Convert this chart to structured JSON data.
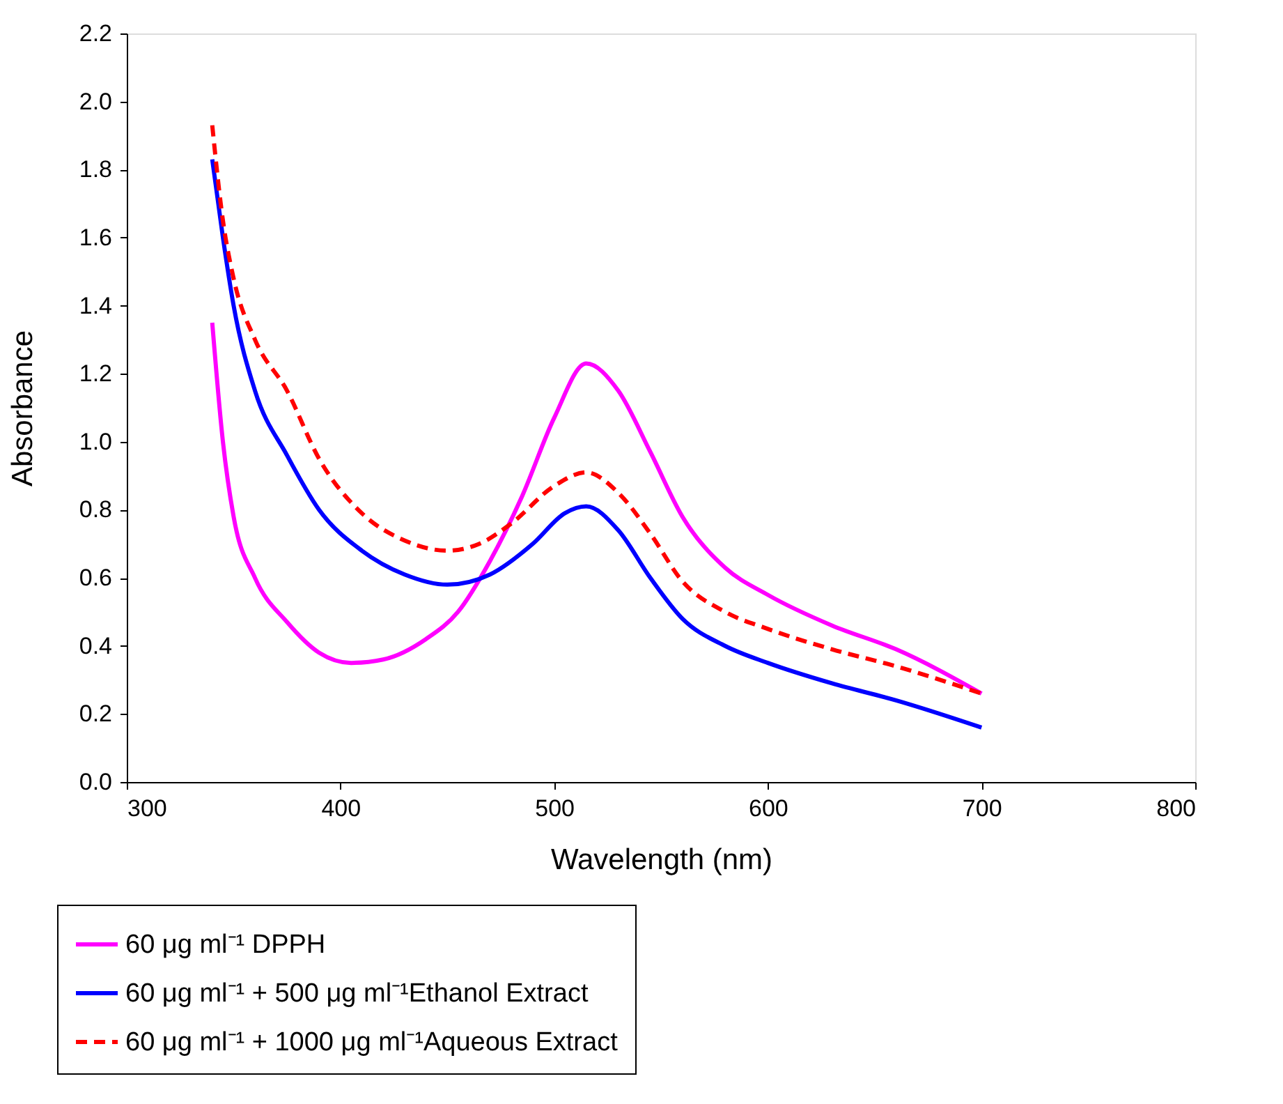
{
  "chart_data": {
    "type": "line",
    "xlabel": "Wavelength (nm)",
    "ylabel": "Absorbance",
    "xlim": [
      300,
      800
    ],
    "xticks": [
      300,
      400,
      500,
      600,
      700,
      800
    ],
    "ylim": [
      0,
      2.2
    ],
    "yticks": [
      {
        "value": 0,
        "label": "0.0"
      },
      {
        "value": 0.2,
        "label": "0.2"
      },
      {
        "value": 0.4,
        "label": "0.4"
      },
      {
        "value": 0.6,
        "label": "0.6"
      },
      {
        "value": 0.8,
        "label": "0.8"
      },
      {
        "value": 1,
        "label": "1.0"
      },
      {
        "value": 1.2,
        "label": "1.2"
      },
      {
        "value": 1.4,
        "label": "1.4"
      },
      {
        "value": 1.6,
        "label": "1.6"
      },
      {
        "value": 1.8,
        "label": "1.8"
      },
      {
        "value": 2,
        "label": "2.0"
      },
      {
        "value": 2.2,
        "label": "2.2"
      }
    ],
    "grid": false,
    "legend": "bottom left",
    "marker": "none",
    "series": [
      {
        "name": "60 μg ml⁻¹ DPPH",
        "color": "#ff00ff",
        "line_style": "solid",
        "x": [
          340,
          345,
          350,
          360,
          375,
          390,
          405,
          420,
          440,
          455,
          470,
          485,
          500,
          515,
          530,
          545,
          560,
          580,
          600,
          630,
          660,
          700
        ],
        "values": [
          1.35,
          1.0,
          0.78,
          0.6,
          0.47,
          0.38,
          0.35,
          0.36,
          0.42,
          0.5,
          0.65,
          0.84,
          1.07,
          1.23,
          1.15,
          0.97,
          0.78,
          0.63,
          0.55,
          0.46,
          0.39,
          0.26
        ]
      },
      {
        "name": "60 μg ml⁻¹ + 500 μg ml⁻¹Ethanol Extract",
        "color": "#0000ff",
        "line_style": "solid",
        "x": [
          340,
          345,
          350,
          360,
          375,
          390,
          410,
          430,
          450,
          470,
          490,
          505,
          515,
          530,
          545,
          560,
          580,
          600,
          630,
          660,
          700
        ],
        "values": [
          1.83,
          1.6,
          1.4,
          1.15,
          0.96,
          0.8,
          0.68,
          0.61,
          0.58,
          0.61,
          0.7,
          0.79,
          0.81,
          0.74,
          0.6,
          0.48,
          0.4,
          0.35,
          0.29,
          0.24,
          0.16
        ]
      },
      {
        "name": "60 μg ml⁻¹ + 1000 μg ml⁻¹Aqueous Extract",
        "color": "#ff0000",
        "line_style": "dashed",
        "x": [
          340,
          345,
          350,
          360,
          375,
          390,
          410,
          430,
          450,
          465,
          480,
          500,
          515,
          530,
          545,
          560,
          580,
          600,
          630,
          660,
          700
        ],
        "values": [
          1.93,
          1.65,
          1.48,
          1.3,
          1.15,
          0.95,
          0.79,
          0.71,
          0.68,
          0.7,
          0.76,
          0.87,
          0.91,
          0.85,
          0.73,
          0.59,
          0.5,
          0.45,
          0.39,
          0.34,
          0.26
        ]
      }
    ]
  }
}
